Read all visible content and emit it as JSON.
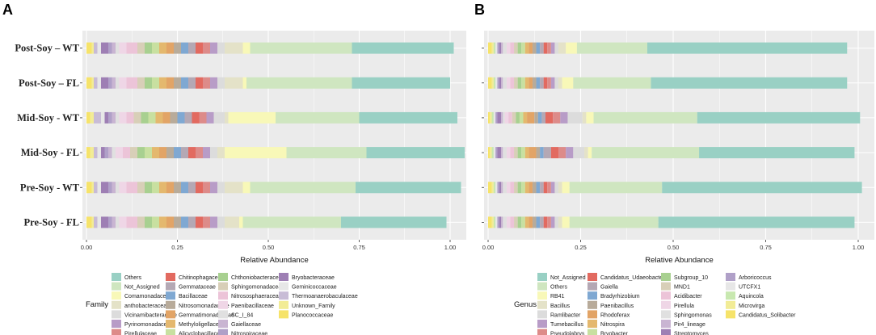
{
  "chart_data": [
    {
      "panel": "A",
      "type": "bar",
      "orientation": "horizontal",
      "stacked": true,
      "xlabel": "Relative Abundance",
      "ylabel": "",
      "xlim": [
        0,
        1
      ],
      "x_ticks": [
        "0.00",
        "0.25",
        "0.50",
        "0.75",
        "1.00"
      ],
      "grid": true,
      "legend_title": "Family",
      "legend_position": "bottom",
      "categories": [
        "Post-Soy – WT",
        "Post-Soy – FL",
        "Mid-Soy - WT",
        "Mid-Soy - FL",
        "Pre-Soy - WT",
        "Pre-Soy - FL"
      ],
      "series": [
        {
          "name": "Others",
          "color": "#99d0c4",
          "values": [
            0.28,
            0.27,
            0.27,
            0.27,
            0.29,
            0.29
          ]
        },
        {
          "name": "Not_Assigned",
          "color": "#cfe6c0",
          "values": [
            0.28,
            0.29,
            0.23,
            0.22,
            0.29,
            0.27
          ]
        },
        {
          "name": "Comamonadaceae",
          "color": "#f8f8b8",
          "values": [
            0.02,
            0.01,
            0.13,
            0.17,
            0.02,
            0.01
          ]
        },
        {
          "name": "anthobacteraceae",
          "color": "#e4e2c8",
          "values": [
            0.05,
            0.05,
            0.01,
            0.02,
            0.05,
            0.04
          ]
        },
        {
          "name": "Vicinamibacteraceae",
          "color": "#dcdcdc",
          "values": [
            0.02,
            0.02,
            0.03,
            0.02,
            0.02,
            0.02
          ]
        },
        {
          "name": "Pyrinomonadaceae",
          "color": "#b89cc7",
          "values": [
            0.02,
            0.02,
            0.02,
            0.02,
            0.02,
            0.02
          ]
        },
        {
          "name": "Pirellulaceae",
          "color": "#dd8b89",
          "values": [
            0.02,
            0.02,
            0.02,
            0.02,
            0.02,
            0.02
          ]
        },
        {
          "name": "Chitinophagaceae",
          "color": "#e26a60",
          "values": [
            0.02,
            0.02,
            0.02,
            0.02,
            0.02,
            0.02
          ]
        },
        {
          "name": "Gemmataceae",
          "color": "#b4a8b4",
          "values": [
            0.02,
            0.02,
            0.02,
            0.02,
            0.02,
            0.02
          ]
        },
        {
          "name": "Bacillaceae",
          "color": "#7fa8d2",
          "values": [
            0.02,
            0.02,
            0.02,
            0.02,
            0.02,
            0.02
          ]
        },
        {
          "name": "Nitrosomonadaceae",
          "color": "#b8ab9a",
          "values": [
            0.02,
            0.02,
            0.02,
            0.02,
            0.02,
            0.02
          ]
        },
        {
          "name": "Gemmatimonadaceae",
          "color": "#e2a466",
          "values": [
            0.02,
            0.02,
            0.02,
            0.02,
            0.02,
            0.02
          ]
        },
        {
          "name": "Methyloligellaceae",
          "color": "#e4b86e",
          "values": [
            0.02,
            0.02,
            0.02,
            0.02,
            0.02,
            0.02
          ]
        },
        {
          "name": "Alicyclobacillaceae",
          "color": "#c8e0a0",
          "values": [
            0.02,
            0.02,
            0.02,
            0.02,
            0.02,
            0.02
          ]
        },
        {
          "name": "Chthoniobacteraceae",
          "color": "#a8d090",
          "values": [
            0.02,
            0.02,
            0.02,
            0.02,
            0.02,
            0.02
          ]
        },
        {
          "name": "Sphingomonadaceae",
          "color": "#d8cfb8",
          "values": [
            0.02,
            0.02,
            0.02,
            0.02,
            0.02,
            0.02
          ]
        },
        {
          "name": "Nitrososphaeraceae",
          "color": "#ecc4d8",
          "values": [
            0.03,
            0.03,
            0.02,
            0.02,
            0.03,
            0.03
          ]
        },
        {
          "name": "Paenibacillaceae",
          "color": "#efd6e6",
          "values": [
            0.02,
            0.02,
            0.02,
            0.02,
            0.02,
            0.02
          ]
        },
        {
          "name": "SC_I_84",
          "color": "#e0e0e0",
          "values": [
            0.01,
            0.01,
            0.01,
            0.01,
            0.01,
            0.01
          ]
        },
        {
          "name": "Gaiellaceae",
          "color": "#c9b5d2",
          "values": [
            0.01,
            0.01,
            0.01,
            0.01,
            0.01,
            0.01
          ]
        },
        {
          "name": "Nitrospiraceae",
          "color": "#b0a0c8",
          "values": [
            0.01,
            0.01,
            0.01,
            0.01,
            0.01,
            0.01
          ]
        },
        {
          "name": "Bryobacteraceae",
          "color": "#9e7fb4",
          "values": [
            0.02,
            0.02,
            0.01,
            0.01,
            0.02,
            0.02
          ]
        },
        {
          "name": "Geminicoccaceae",
          "color": "#e7e7e7",
          "values": [
            0.01,
            0.01,
            0.01,
            0.01,
            0.01,
            0.01
          ]
        },
        {
          "name": "Thermoanaerobaculaceae",
          "color": "#c8bcd6",
          "values": [
            0.01,
            0.01,
            0.02,
            0.01,
            0.01,
            0.01
          ]
        },
        {
          "name": "Unknown_Family",
          "color": "#f2ec96",
          "values": [
            0.005,
            0.005,
            0.01,
            0.01,
            0.005,
            0.005
          ]
        },
        {
          "name": "Planococcaceae",
          "color": "#f6e36a",
          "values": [
            0.015,
            0.015,
            0.01,
            0.01,
            0.015,
            0.015
          ]
        }
      ]
    },
    {
      "panel": "B",
      "type": "bar",
      "orientation": "horizontal",
      "stacked": true,
      "xlabel": "Relative Abundance",
      "ylabel": "",
      "xlim": [
        0,
        1
      ],
      "x_ticks": [
        "0.00",
        "0.25",
        "0.50",
        "0.75",
        "1.00"
      ],
      "grid": true,
      "legend_title": "Genus",
      "legend_position": "bottom",
      "categories": [
        "Post-Soy – WT",
        "Post-Soy – FL",
        "Mid-Soy - WT",
        "Mid-Soy - FL",
        "Pre-Soy - WT",
        "Pre-Soy - FL"
      ],
      "series": [
        {
          "name": "Not_Assigned",
          "color": "#99d0c4",
          "values": [
            0.54,
            0.53,
            0.44,
            0.42,
            0.54,
            0.53
          ]
        },
        {
          "name": "Others",
          "color": "#cfe6c0",
          "values": [
            0.19,
            0.21,
            0.28,
            0.29,
            0.25,
            0.24
          ]
        },
        {
          "name": "RB41",
          "color": "#f8f8b8",
          "values": [
            0.03,
            0.03,
            0.02,
            0.01,
            0.02,
            0.02
          ]
        },
        {
          "name": "Bacillus",
          "color": "#e4e2c8",
          "values": [
            0.02,
            0.01,
            0.01,
            0.01,
            0.01,
            0.01
          ]
        },
        {
          "name": "Ramlibacter",
          "color": "#dcdcdc",
          "values": [
            0.01,
            0.01,
            0.04,
            0.03,
            0.01,
            0.01
          ]
        },
        {
          "name": "Tumebacillus",
          "color": "#b89cc7",
          "values": [
            0.01,
            0.01,
            0.02,
            0.02,
            0.01,
            0.01
          ]
        },
        {
          "name": "Pseudolabrys",
          "color": "#dd8b89",
          "values": [
            0.01,
            0.01,
            0.02,
            0.02,
            0.01,
            0.01
          ]
        },
        {
          "name": "Candidatus_Udaeobacter",
          "color": "#e26a60",
          "values": [
            0.01,
            0.01,
            0.02,
            0.02,
            0.01,
            0.01
          ]
        },
        {
          "name": "Gaiella",
          "color": "#b4a8b4",
          "values": [
            0.01,
            0.01,
            0.01,
            0.02,
            0.01,
            0.01
          ]
        },
        {
          "name": "Bradyrhizobium",
          "color": "#7fa8d2",
          "values": [
            0.01,
            0.01,
            0.01,
            0.01,
            0.01,
            0.01
          ]
        },
        {
          "name": "Paenibacillus",
          "color": "#b8ab9a",
          "values": [
            0.01,
            0.01,
            0.01,
            0.01,
            0.01,
            0.01
          ]
        },
        {
          "name": "Rhodoferax",
          "color": "#e2a466",
          "values": [
            0.01,
            0.01,
            0.02,
            0.02,
            0.01,
            0.01
          ]
        },
        {
          "name": "Nitrospira",
          "color": "#e4b86e",
          "values": [
            0.01,
            0.01,
            0.01,
            0.01,
            0.01,
            0.01
          ]
        },
        {
          "name": "Bryobacter",
          "color": "#c8e0a0",
          "values": [
            0.01,
            0.01,
            0.01,
            0.01,
            0.01,
            0.01
          ]
        },
        {
          "name": "Subgroup_10",
          "color": "#a8d090",
          "values": [
            0.01,
            0.01,
            0.01,
            0.01,
            0.01,
            0.01
          ]
        },
        {
          "name": "MND1",
          "color": "#d8cfb8",
          "values": [
            0.01,
            0.01,
            0.01,
            0.01,
            0.01,
            0.01
          ]
        },
        {
          "name": "Acidibacter",
          "color": "#ecc4d8",
          "values": [
            0.01,
            0.01,
            0.01,
            0.01,
            0.01,
            0.01
          ]
        },
        {
          "name": "Pirellula",
          "color": "#efd6e6",
          "values": [
            0.01,
            0.01,
            0.01,
            0.01,
            0.01,
            0.01
          ]
        },
        {
          "name": "Sphingomonas",
          "color": "#e0e0e0",
          "values": [
            0.01,
            0.01,
            0.005,
            0.01,
            0.01,
            0.01
          ]
        },
        {
          "name": "Pir4_lineage",
          "color": "#c9b5d2",
          "values": [
            0.005,
            0.005,
            0.005,
            0.005,
            0.005,
            0.005
          ]
        },
        {
          "name": "Streptomyces",
          "color": "#9e7fb4",
          "values": [
            0.005,
            0.005,
            0.01,
            0.01,
            0.005,
            0.005
          ]
        },
        {
          "name": "Arboricoccus",
          "color": "#b0a0c8",
          "values": [
            0.005,
            0.005,
            0.005,
            0.005,
            0.005,
            0.005
          ]
        },
        {
          "name": "UTCFX1",
          "color": "#e7e7e7",
          "values": [
            0.005,
            0.005,
            0.005,
            0.005,
            0.005,
            0.005
          ]
        },
        {
          "name": "Aquincola",
          "color": "#c8e8b0",
          "values": [
            0.005,
            0.005,
            0.005,
            0.005,
            0.005,
            0.005
          ]
        },
        {
          "name": "Microvirga",
          "color": "#f2ec96",
          "values": [
            0.005,
            0.005,
            0.005,
            0.005,
            0.005,
            0.005
          ]
        },
        {
          "name": "Candidatus_Solibacter",
          "color": "#f6e36a",
          "values": [
            0.01,
            0.01,
            0.005,
            0.005,
            0.01,
            0.01
          ]
        }
      ]
    }
  ]
}
